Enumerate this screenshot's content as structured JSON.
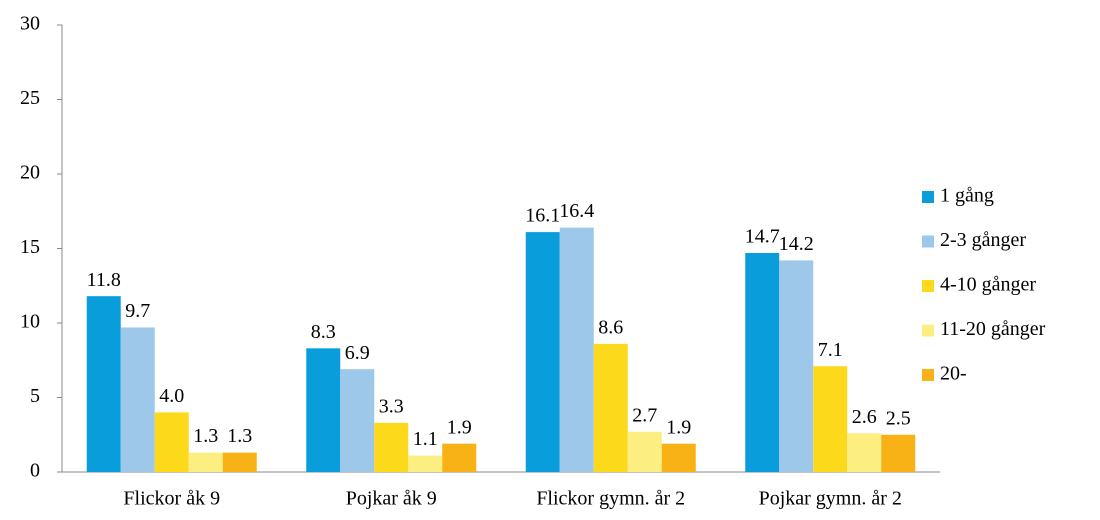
{
  "chart_data": {
    "type": "bar",
    "categories": [
      "Flickor åk 9",
      "Pojkar åk 9",
      "Flickor gymn. år 2",
      "Pojkar gymn. år 2"
    ],
    "series": [
      {
        "name": "1 gång",
        "color": "#0a9ddb",
        "values": [
          11.8,
          8.3,
          16.1,
          14.7
        ],
        "value_labels": [
          "11.8",
          "8.3",
          "16.1",
          "14.7"
        ]
      },
      {
        "name": "2-3 gånger",
        "color": "#9dc8ea",
        "values": [
          9.7,
          6.9,
          16.4,
          14.2
        ],
        "value_labels": [
          "9.7",
          "6.9",
          "16.4",
          "14.2"
        ]
      },
      {
        "name": "4-10 gånger",
        "color": "#fdd91c",
        "values": [
          4.0,
          3.3,
          8.6,
          7.1
        ],
        "value_labels": [
          "4.0",
          "3.3",
          "8.6",
          "7.1"
        ]
      },
      {
        "name": "11-20 gånger",
        "color": "#fdee82",
        "values": [
          1.3,
          1.1,
          2.7,
          2.6
        ],
        "value_labels": [
          "1.3",
          "1.1",
          "2.7",
          "2.6"
        ]
      },
      {
        "name": "20-",
        "color": "#f8b215",
        "values": [
          1.3,
          1.9,
          1.9,
          2.5
        ],
        "value_labels": [
          "1.3",
          "1.9",
          "1.9",
          "2.5"
        ]
      }
    ],
    "ylim": [
      0,
      30
    ],
    "yticks": [
      0,
      5,
      10,
      15,
      20,
      25,
      30
    ],
    "grid": false,
    "legend": "right"
  }
}
